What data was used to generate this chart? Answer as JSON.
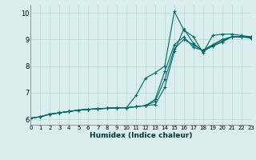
{
  "xlabel": "Humidex (Indice chaleur)",
  "xlim": [
    0,
    23
  ],
  "ylim": [
    5.8,
    10.3
  ],
  "yticks": [
    6,
    7,
    8,
    9,
    10
  ],
  "xticks": [
    0,
    1,
    2,
    3,
    4,
    5,
    6,
    7,
    8,
    9,
    10,
    11,
    12,
    13,
    14,
    15,
    16,
    17,
    18,
    19,
    20,
    21,
    22,
    23
  ],
  "bg_color": "#d9eeed",
  "grid_color": "#b8d8d5",
  "line_color": "#006868",
  "lines": [
    [
      6.05,
      6.1,
      6.2,
      6.25,
      6.3,
      6.35,
      6.38,
      6.4,
      6.42,
      6.44,
      6.44,
      6.9,
      7.55,
      7.75,
      8.0,
      10.05,
      9.35,
      9.1,
      8.5,
      9.15,
      9.2,
      9.2,
      9.15,
      9.1
    ],
    [
      6.05,
      6.1,
      6.2,
      6.25,
      6.3,
      6.35,
      6.38,
      6.4,
      6.42,
      6.44,
      6.44,
      6.48,
      6.52,
      6.56,
      7.2,
      8.55,
      9.4,
      8.85,
      8.55,
      8.75,
      8.9,
      9.1,
      9.1,
      9.1
    ],
    [
      6.05,
      6.1,
      6.2,
      6.25,
      6.3,
      6.35,
      6.38,
      6.4,
      6.42,
      6.44,
      6.44,
      6.48,
      6.52,
      6.75,
      7.8,
      8.8,
      9.1,
      8.7,
      8.6,
      8.8,
      9.0,
      9.1,
      9.1,
      9.05
    ],
    [
      6.05,
      6.1,
      6.2,
      6.25,
      6.3,
      6.35,
      6.38,
      6.4,
      6.42,
      6.44,
      6.44,
      6.48,
      6.52,
      6.68,
      7.5,
      8.65,
      9.0,
      8.8,
      8.58,
      8.78,
      8.95,
      9.1,
      9.1,
      9.08
    ]
  ]
}
